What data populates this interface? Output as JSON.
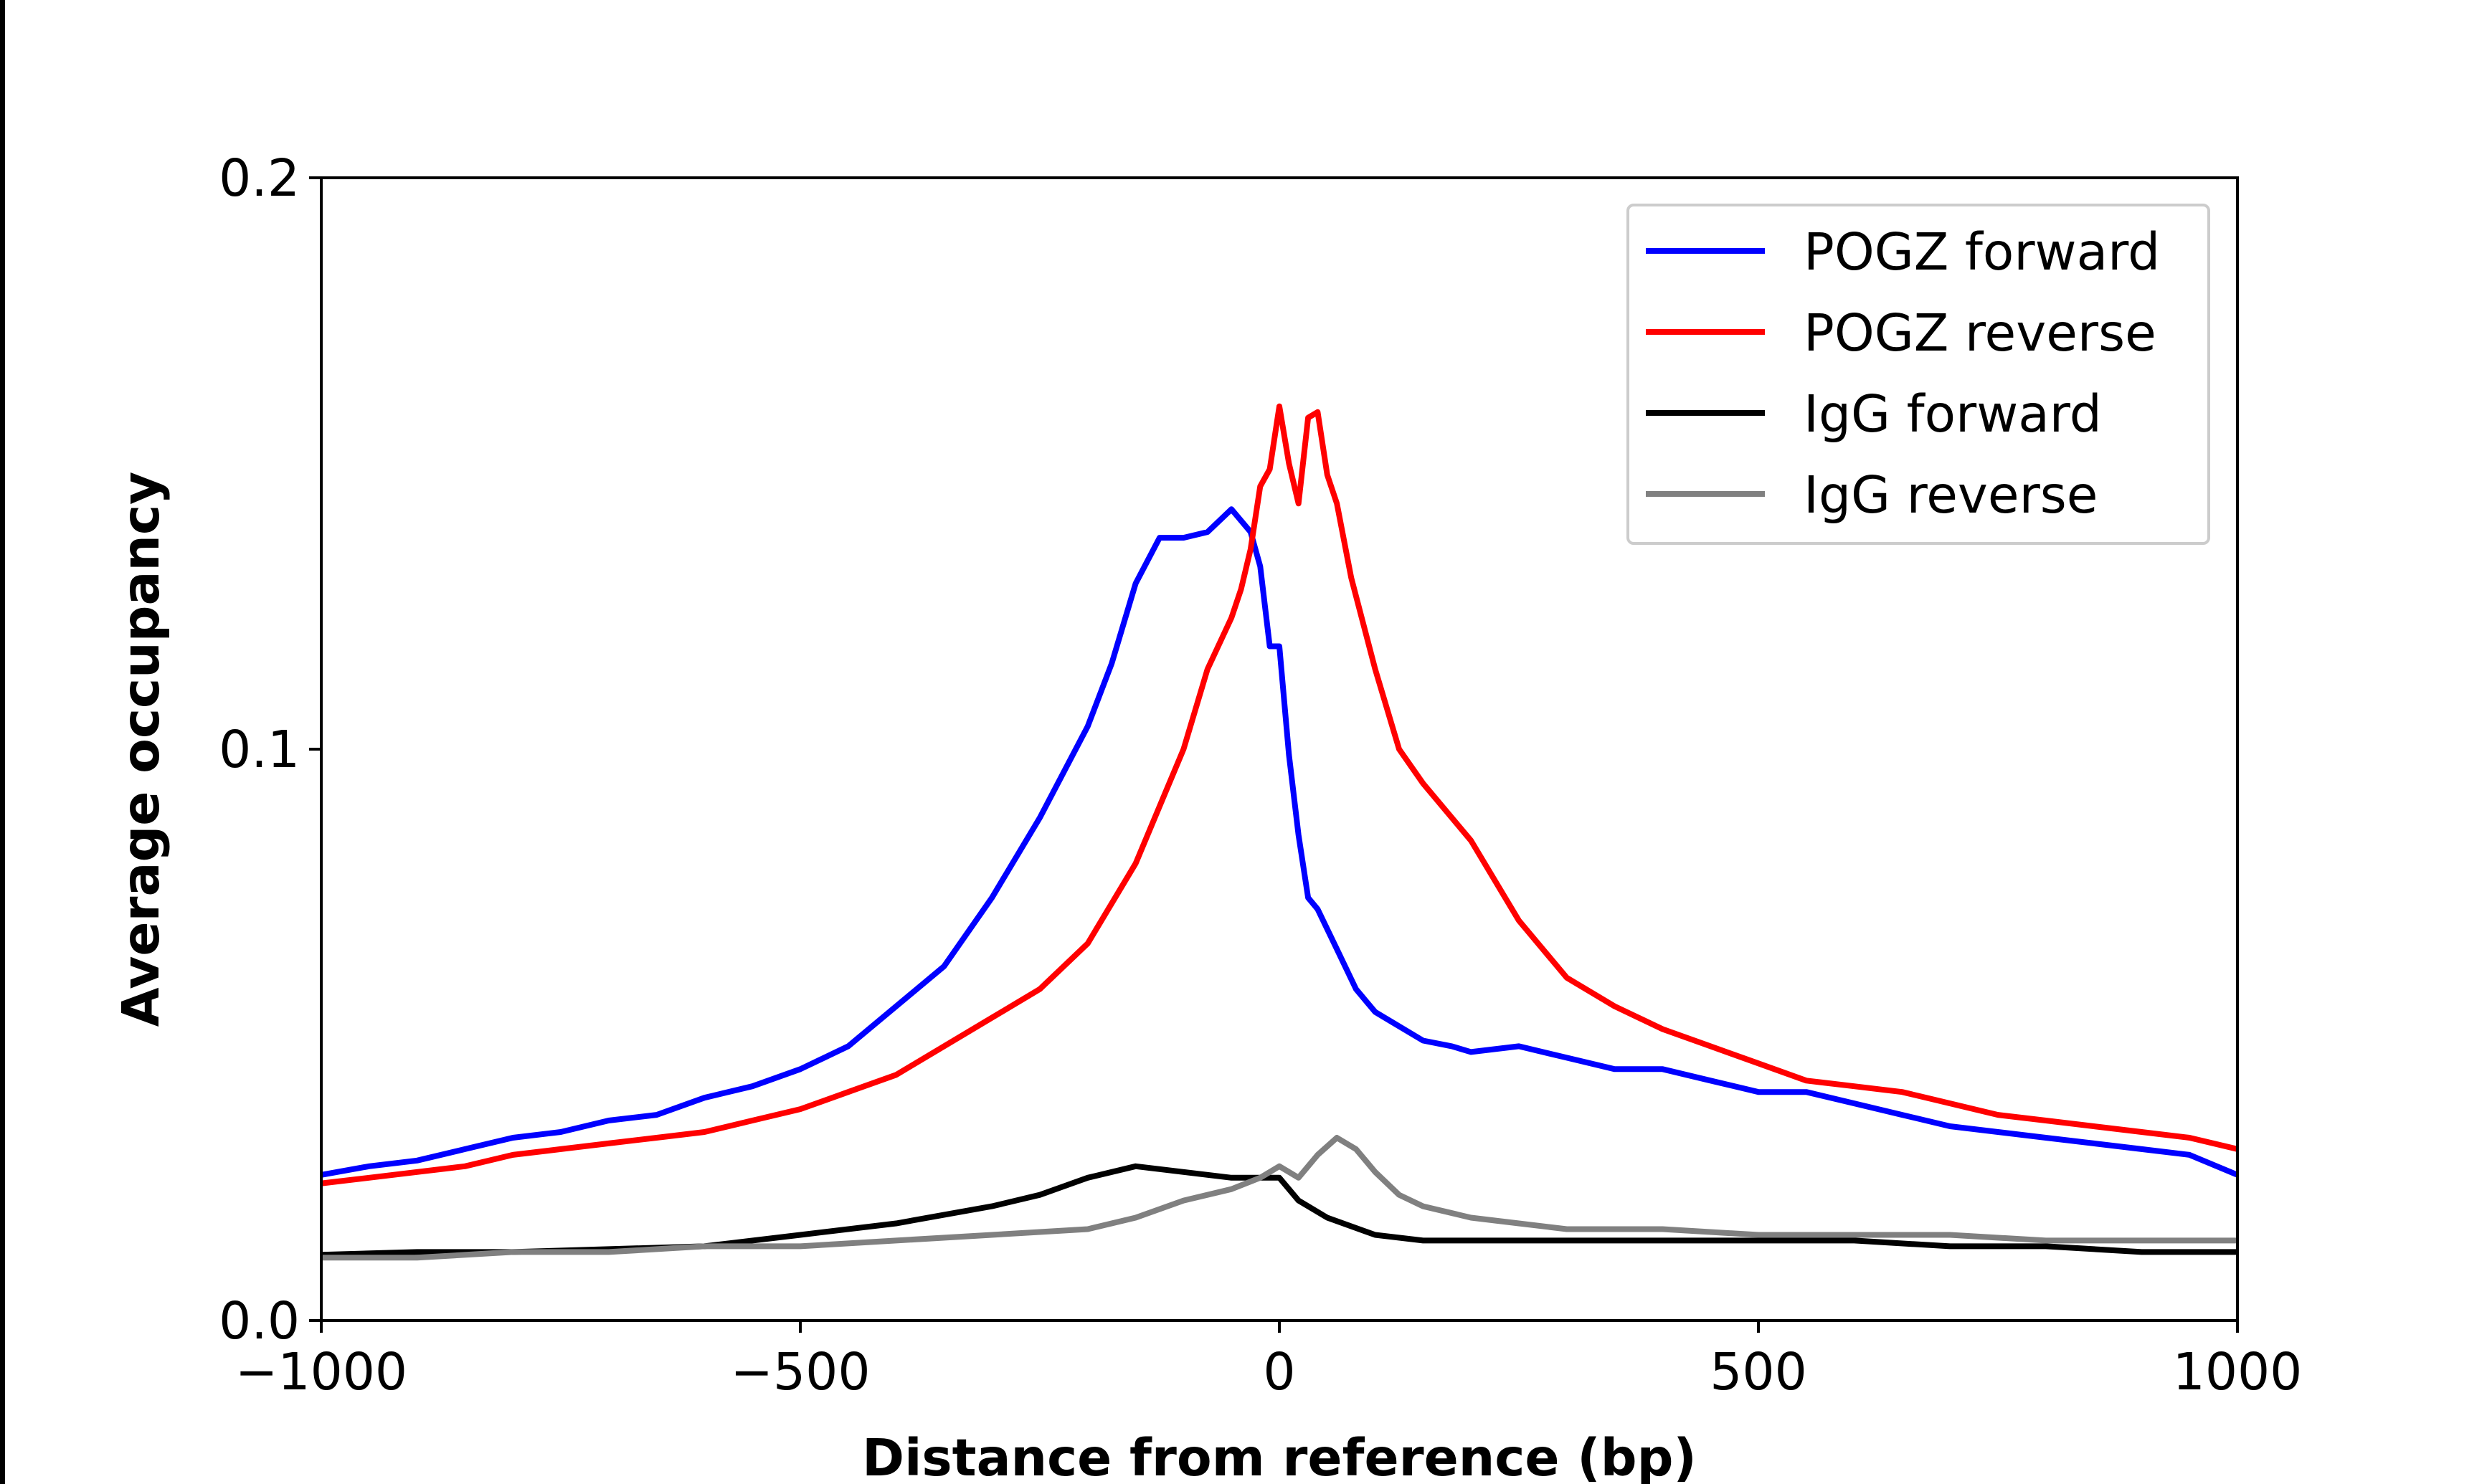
{
  "chart_data": {
    "type": "line",
    "title": "",
    "xlabel": "Distance from reference (bp)",
    "ylabel": "Average occupancy",
    "xlim": [
      -1000,
      1000
    ],
    "ylim": [
      0.0,
      0.2
    ],
    "xticks": [
      {
        "value": -1000,
        "label": "−1000"
      },
      {
        "value": -500,
        "label": "−500"
      },
      {
        "value": 0,
        "label": "0"
      },
      {
        "value": 500,
        "label": "500"
      },
      {
        "value": 1000,
        "label": "1000"
      }
    ],
    "yticks": [
      {
        "value": 0.0,
        "label": "0.0"
      },
      {
        "value": 0.1,
        "label": "0.1"
      },
      {
        "value": 0.2,
        "label": "0.2"
      }
    ],
    "grid": false,
    "legend_position": "top-right",
    "series": [
      {
        "name": "POGZ forward",
        "color": "#0000ff",
        "x": [
          -1000,
          -950,
          -900,
          -850,
          -800,
          -750,
          -700,
          -650,
          -600,
          -550,
          -500,
          -450,
          -400,
          -350,
          -300,
          -250,
          -200,
          -175,
          -150,
          -125,
          -100,
          -75,
          -50,
          -30,
          -20,
          -10,
          0,
          10,
          20,
          30,
          40,
          60,
          80,
          100,
          120,
          150,
          180,
          200,
          250,
          300,
          350,
          400,
          450,
          500,
          550,
          600,
          650,
          700,
          750,
          800,
          850,
          900,
          950,
          1000
        ],
        "y": [
          0.0255,
          0.027,
          0.028,
          0.03,
          0.032,
          0.033,
          0.035,
          0.036,
          0.039,
          0.041,
          0.044,
          0.048,
          0.055,
          0.062,
          0.074,
          0.088,
          0.104,
          0.115,
          0.129,
          0.137,
          0.137,
          0.138,
          0.142,
          0.138,
          0.132,
          0.118,
          0.118,
          0.099,
          0.085,
          0.074,
          0.072,
          0.065,
          0.058,
          0.054,
          0.052,
          0.049,
          0.048,
          0.047,
          0.048,
          0.046,
          0.044,
          0.044,
          0.042,
          0.04,
          0.04,
          0.038,
          0.036,
          0.034,
          0.033,
          0.032,
          0.031,
          0.03,
          0.029,
          0.0255
        ]
      },
      {
        "name": "POGZ reverse",
        "color": "#ff0000",
        "x": [
          -1000,
          -950,
          -900,
          -850,
          -800,
          -750,
          -700,
          -650,
          -600,
          -550,
          -500,
          -450,
          -400,
          -350,
          -300,
          -250,
          -200,
          -150,
          -100,
          -75,
          -50,
          -40,
          -30,
          -20,
          -10,
          0,
          10,
          20,
          30,
          40,
          50,
          60,
          75,
          100,
          125,
          150,
          200,
          250,
          300,
          350,
          400,
          450,
          500,
          550,
          600,
          650,
          700,
          750,
          800,
          850,
          900,
          950,
          1000
        ],
        "y": [
          0.024,
          0.025,
          0.026,
          0.027,
          0.029,
          0.03,
          0.031,
          0.032,
          0.033,
          0.035,
          0.037,
          0.04,
          0.043,
          0.048,
          0.053,
          0.058,
          0.066,
          0.08,
          0.1,
          0.114,
          0.123,
          0.128,
          0.135,
          0.146,
          0.149,
          0.16,
          0.15,
          0.143,
          0.158,
          0.159,
          0.148,
          0.143,
          0.13,
          0.114,
          0.1,
          0.094,
          0.084,
          0.07,
          0.06,
          0.055,
          0.051,
          0.048,
          0.045,
          0.042,
          0.041,
          0.04,
          0.038,
          0.036,
          0.035,
          0.034,
          0.033,
          0.032,
          0.03
        ]
      },
      {
        "name": "IgG forward",
        "color": "#000000",
        "x": [
          -1000,
          -900,
          -800,
          -700,
          -600,
          -500,
          -400,
          -300,
          -250,
          -200,
          -150,
          -100,
          -50,
          -20,
          0,
          20,
          50,
          100,
          150,
          200,
          300,
          400,
          500,
          600,
          700,
          800,
          900,
          1000
        ],
        "y": [
          0.0115,
          0.012,
          0.012,
          0.0125,
          0.013,
          0.015,
          0.017,
          0.02,
          0.022,
          0.025,
          0.027,
          0.026,
          0.025,
          0.025,
          0.025,
          0.021,
          0.018,
          0.015,
          0.014,
          0.014,
          0.014,
          0.014,
          0.014,
          0.014,
          0.013,
          0.013,
          0.012,
          0.012
        ]
      },
      {
        "name": "IgG reverse",
        "color": "#808080",
        "x": [
          -1000,
          -900,
          -800,
          -700,
          -600,
          -500,
          -400,
          -300,
          -200,
          -150,
          -100,
          -50,
          -20,
          0,
          10,
          20,
          40,
          60,
          80,
          100,
          125,
          150,
          200,
          250,
          300,
          400,
          500,
          600,
          700,
          800,
          900,
          1000
        ],
        "y": [
          0.011,
          0.011,
          0.012,
          0.012,
          0.013,
          0.013,
          0.014,
          0.015,
          0.016,
          0.018,
          0.021,
          0.023,
          0.025,
          0.027,
          0.026,
          0.025,
          0.029,
          0.032,
          0.03,
          0.026,
          0.022,
          0.02,
          0.018,
          0.017,
          0.016,
          0.016,
          0.015,
          0.015,
          0.015,
          0.014,
          0.014,
          0.014
        ]
      }
    ]
  }
}
